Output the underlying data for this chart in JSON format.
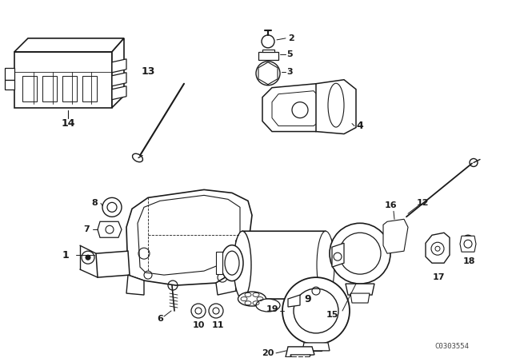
{
  "background_color": "#ffffff",
  "line_color": "#1a1a1a",
  "watermark": "C0303554",
  "figsize": [
    6.4,
    4.48
  ],
  "dpi": 100
}
